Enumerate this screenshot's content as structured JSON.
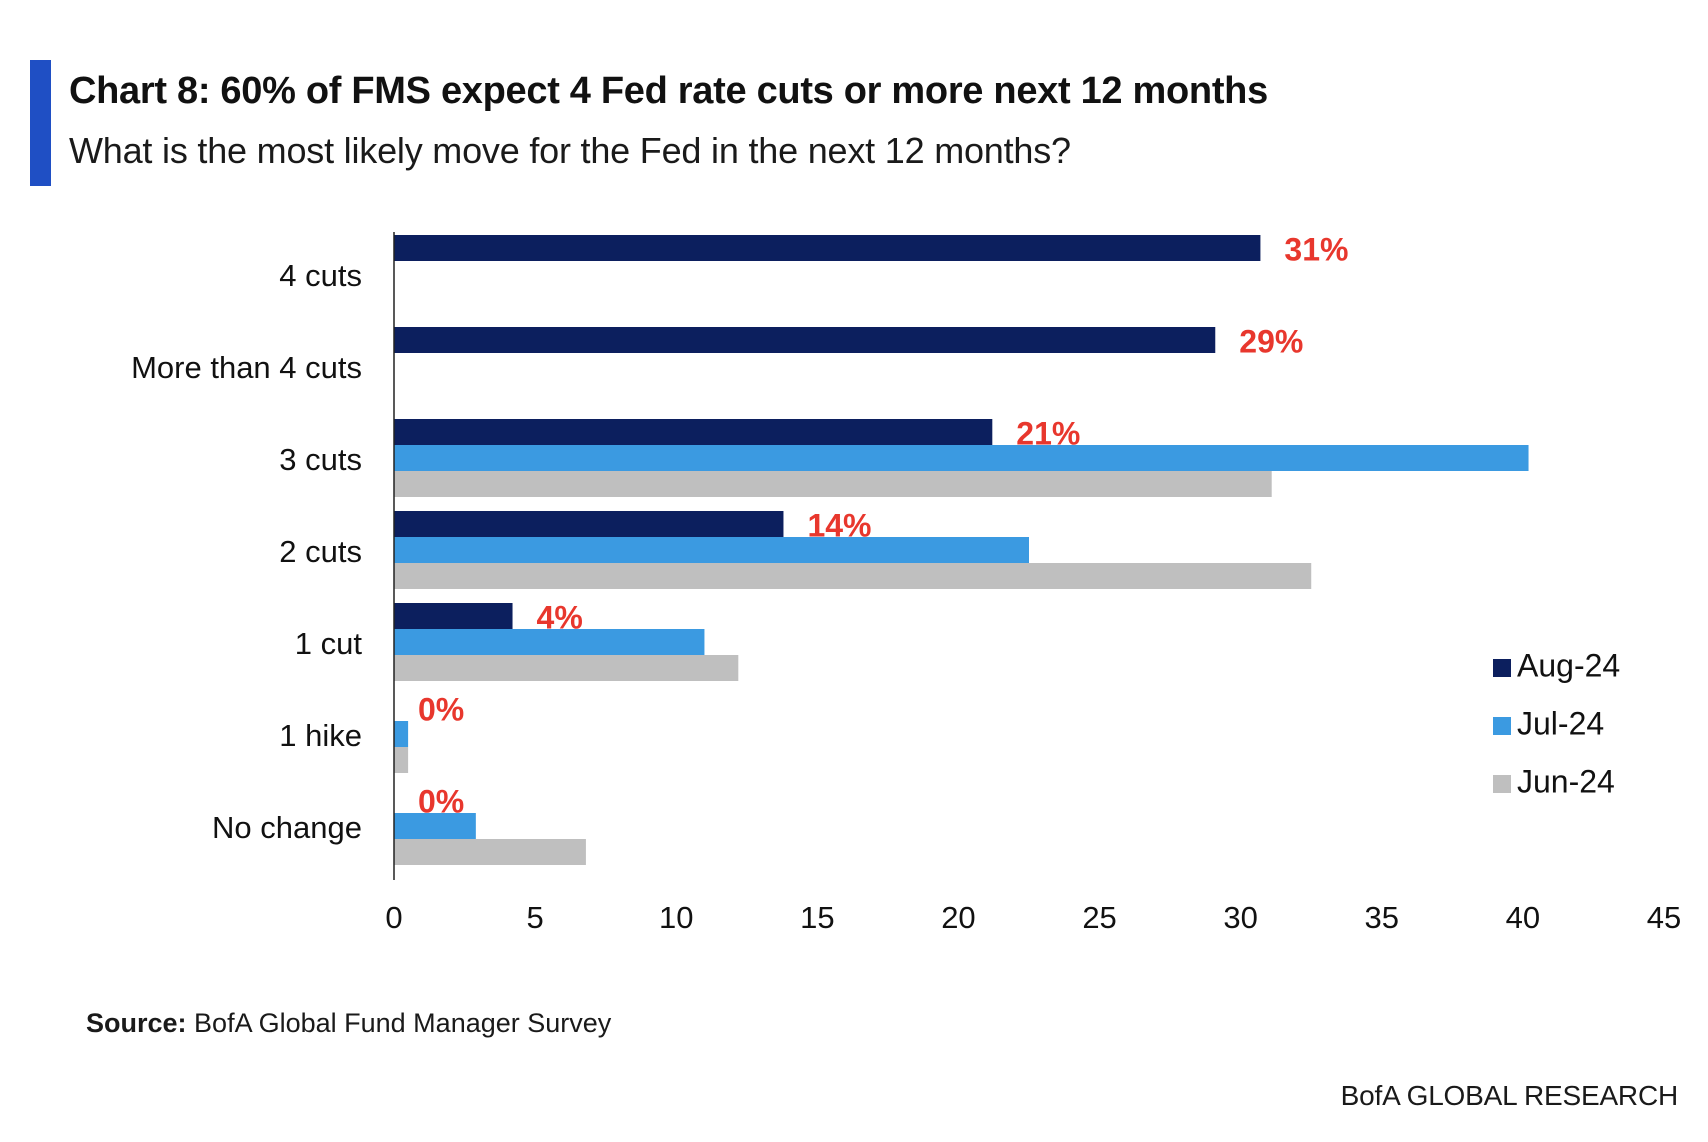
{
  "header": {
    "title": "Chart 8: 60% of FMS expect 4 Fed rate cuts or more next 12 months",
    "subtitle": "What is the most likely move for the Fed in the next 12 months?"
  },
  "footer": {
    "source_label": "Source:",
    "source_text": "BofA Global Fund Manager Survey",
    "branding": "BofA GLOBAL RESEARCH"
  },
  "colors": {
    "accent": "#1f4fc4",
    "aug": "#0c1f5e",
    "jul": "#3b9ae1",
    "jun": "#bfbfbf",
    "label_red": "#e8372d",
    "axis": "#222222"
  },
  "chart_data": {
    "type": "bar",
    "orientation": "horizontal",
    "title": "Chart 8: 60% of FMS expect 4 Fed rate cuts or more next 12 months",
    "subtitle": "What is the most likely move for the Fed in the next 12 months?",
    "categories": [
      "4 cuts",
      "More than 4 cuts",
      "3 cuts",
      "2 cuts",
      "1 cut",
      "1 hike",
      "No change"
    ],
    "series": [
      {
        "name": "Aug-24",
        "color_key": "aug",
        "values": [
          30.7,
          29.1,
          21.2,
          13.8,
          4.2,
          0,
          0
        ]
      },
      {
        "name": "Jul-24",
        "color_key": "jul",
        "values": [
          null,
          null,
          40.2,
          22.5,
          11.0,
          0.5,
          2.9
        ]
      },
      {
        "name": "Jun-24",
        "color_key": "jun",
        "values": [
          null,
          null,
          31.1,
          32.5,
          12.2,
          0.5,
          6.8
        ]
      }
    ],
    "data_labels": [
      "31%",
      "29%",
      "21%",
      "14%",
      "4%",
      "0%",
      "0%"
    ],
    "xlim": [
      0,
      45
    ],
    "xticks": [
      0,
      5,
      10,
      15,
      20,
      25,
      30,
      35,
      40,
      45
    ],
    "grid": false,
    "legend": {
      "position": "right",
      "entries": [
        "Aug-24",
        "Jul-24",
        "Jun-24"
      ]
    }
  }
}
